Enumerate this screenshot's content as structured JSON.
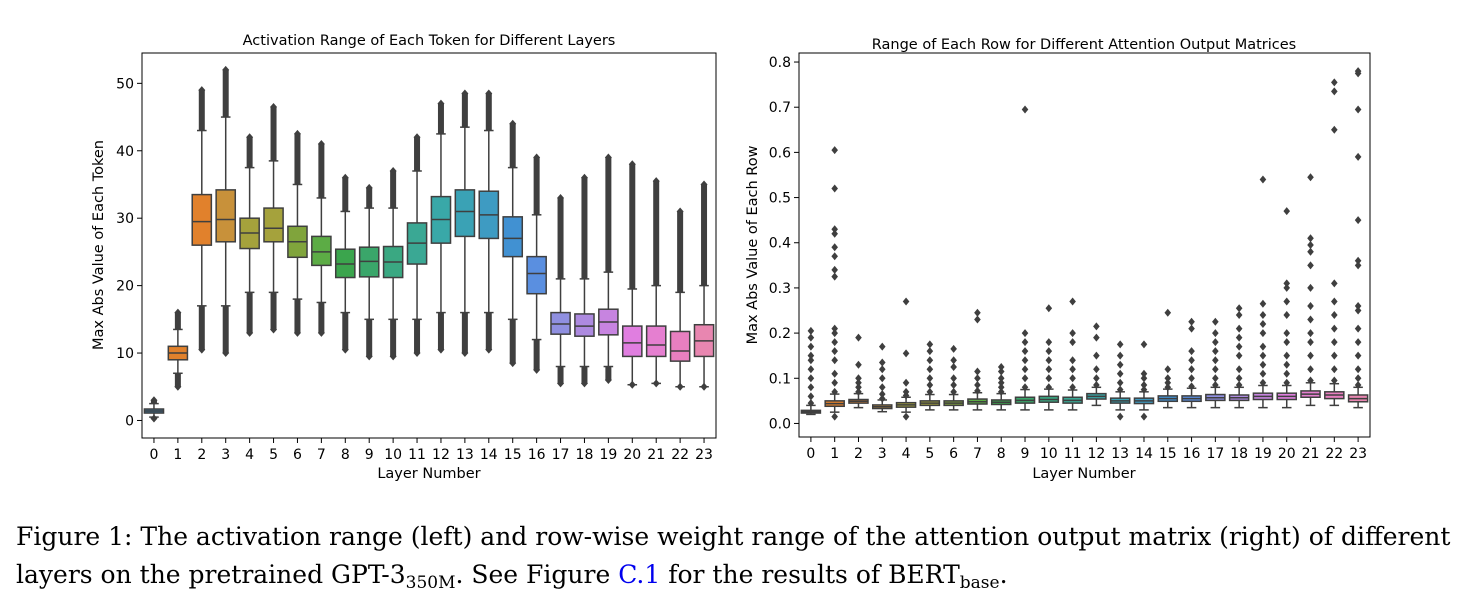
{
  "chart_data": [
    {
      "type": "box",
      "title": "Activation Range of Each Token for Different Layers",
      "xlabel": "Layer Number",
      "ylabel": "Max Abs Value of Each Token",
      "ylim": [
        -2.6,
        54.5
      ],
      "yticks": [
        "0",
        "10",
        "20",
        "30",
        "40",
        "50"
      ],
      "categories": [
        "0",
        "1",
        "2",
        "3",
        "4",
        "5",
        "6",
        "7",
        "8",
        "9",
        "10",
        "11",
        "12",
        "13",
        "14",
        "15",
        "16",
        "17",
        "18",
        "19",
        "20",
        "21",
        "22",
        "23"
      ],
      "colors": [
        "#3274a1",
        "#e1812c",
        "#e1812c",
        "#c8913a",
        "#a5a23c",
        "#a5a23c",
        "#80a43c",
        "#5cac45",
        "#3ba54d",
        "#3aa66a",
        "#3aa882",
        "#3aa894",
        "#39a8a8",
        "#3aa2b5",
        "#3e9bc2",
        "#4191d2",
        "#5a8fe0",
        "#8f8fe0",
        "#ad8ae0",
        "#c784e0",
        "#e07ee0",
        "#e57fd0",
        "#e87fc0",
        "#e886b0"
      ],
      "boxes": [
        {
          "whislo": 0.5,
          "q1": 1.1,
          "med": 1.4,
          "q3": 1.7,
          "whishi": 2.5,
          "flier_lo": 0.3,
          "flier_hi": 3.0
        },
        {
          "whislo": 7.0,
          "q1": 9.0,
          "med": 10.0,
          "q3": 11.0,
          "whishi": 13.5,
          "flier_lo": 5.0,
          "flier_hi": 16.0
        },
        {
          "whislo": 17.0,
          "q1": 26.0,
          "med": 29.5,
          "q3": 33.5,
          "whishi": 43.0,
          "flier_lo": 10.5,
          "flier_hi": 49.0
        },
        {
          "whislo": 17.0,
          "q1": 26.5,
          "med": 29.8,
          "q3": 34.2,
          "whishi": 45.0,
          "flier_lo": 10.0,
          "flier_hi": 52.0
        },
        {
          "whislo": 19.0,
          "q1": 25.5,
          "med": 27.8,
          "q3": 30.0,
          "whishi": 37.5,
          "flier_lo": 13.0,
          "flier_hi": 42.0
        },
        {
          "whislo": 19.0,
          "q1": 26.5,
          "med": 28.5,
          "q3": 31.5,
          "whishi": 38.5,
          "flier_lo": 13.5,
          "flier_hi": 46.5
        },
        {
          "whislo": 18.0,
          "q1": 24.2,
          "med": 26.5,
          "q3": 28.8,
          "whishi": 35.0,
          "flier_lo": 13.0,
          "flier_hi": 42.5
        },
        {
          "whislo": 17.5,
          "q1": 23.0,
          "med": 25.0,
          "q3": 27.3,
          "whishi": 33.0,
          "flier_lo": 13.0,
          "flier_hi": 41.0
        },
        {
          "whislo": 16.0,
          "q1": 21.2,
          "med": 23.2,
          "q3": 25.4,
          "whishi": 31.0,
          "flier_lo": 10.5,
          "flier_hi": 36.0
        },
        {
          "whislo": 15.0,
          "q1": 21.3,
          "med": 23.6,
          "q3": 25.7,
          "whishi": 31.5,
          "flier_lo": 9.5,
          "flier_hi": 34.5
        },
        {
          "whislo": 15.0,
          "q1": 21.2,
          "med": 23.5,
          "q3": 25.8,
          "whishi": 31.5,
          "flier_lo": 9.5,
          "flier_hi": 37.0
        },
        {
          "whislo": 15.0,
          "q1": 23.2,
          "med": 26.3,
          "q3": 29.3,
          "whishi": 37.0,
          "flier_lo": 10.0,
          "flier_hi": 42.0
        },
        {
          "whislo": 16.0,
          "q1": 26.3,
          "med": 29.8,
          "q3": 33.2,
          "whishi": 42.5,
          "flier_lo": 10.5,
          "flier_hi": 47.0
        },
        {
          "whislo": 16.0,
          "q1": 27.3,
          "med": 31.0,
          "q3": 34.2,
          "whishi": 43.5,
          "flier_lo": 10.0,
          "flier_hi": 48.5
        },
        {
          "whislo": 16.0,
          "q1": 27.0,
          "med": 30.5,
          "q3": 34.0,
          "whishi": 43.0,
          "flier_lo": 10.5,
          "flier_hi": 48.5
        },
        {
          "whislo": 15.0,
          "q1": 24.3,
          "med": 27.0,
          "q3": 30.2,
          "whishi": 37.5,
          "flier_lo": 8.5,
          "flier_hi": 44.0
        },
        {
          "whislo": 12.0,
          "q1": 18.8,
          "med": 21.8,
          "q3": 24.3,
          "whishi": 30.5,
          "flier_lo": 7.5,
          "flier_hi": 39.0
        },
        {
          "whislo": 8.0,
          "q1": 12.8,
          "med": 14.3,
          "q3": 16.0,
          "whishi": 21.0,
          "flier_lo": 5.5,
          "flier_hi": 33.0
        },
        {
          "whislo": 8.0,
          "q1": 12.5,
          "med": 14.0,
          "q3": 15.8,
          "whishi": 21.0,
          "flier_lo": 5.5,
          "flier_hi": 36.0
        },
        {
          "whislo": 8.0,
          "q1": 12.7,
          "med": 14.6,
          "q3": 16.5,
          "whishi": 22.0,
          "flier_lo": 6.0,
          "flier_hi": 39.0
        },
        {
          "whislo": 5.3,
          "q1": 9.5,
          "med": 11.5,
          "q3": 14.0,
          "whishi": 19.5,
          "flier_lo": 5.3,
          "flier_hi": 38.0
        },
        {
          "whislo": 5.5,
          "q1": 9.5,
          "med": 11.2,
          "q3": 14.0,
          "whishi": 20.0,
          "flier_lo": 5.5,
          "flier_hi": 35.5
        },
        {
          "whislo": 5.0,
          "q1": 8.8,
          "med": 10.3,
          "q3": 13.2,
          "whishi": 19.0,
          "flier_lo": 5.0,
          "flier_hi": 31.0
        },
        {
          "whislo": 5.0,
          "q1": 9.5,
          "med": 11.8,
          "q3": 14.2,
          "whishi": 20.0,
          "flier_lo": 5.0,
          "flier_hi": 35.0
        }
      ]
    },
    {
      "type": "box",
      "title": "Range of Each Row for Different Attention Output Matrices",
      "xlabel": "Layer Number",
      "ylabel": "Max Abs Value of Each Row",
      "ylim": [
        -0.03,
        0.82
      ],
      "yticks": [
        "0.0",
        "0.1",
        "0.2",
        "0.3",
        "0.4",
        "0.5",
        "0.6",
        "0.7",
        "0.8"
      ],
      "categories": [
        "0",
        "1",
        "2",
        "3",
        "4",
        "5",
        "6",
        "7",
        "8",
        "9",
        "10",
        "11",
        "12",
        "13",
        "14",
        "15",
        "16",
        "17",
        "18",
        "19",
        "20",
        "21",
        "22",
        "23"
      ],
      "colors": [
        "#3274a1",
        "#e1812c",
        "#e1812c",
        "#c8913a",
        "#a5a23c",
        "#a5a23c",
        "#80a43c",
        "#5cac45",
        "#3ba54d",
        "#3aa66a",
        "#3aa882",
        "#3aa894",
        "#39a8a8",
        "#3aa2b5",
        "#3e9bc2",
        "#4191d2",
        "#5a8fe0",
        "#8f8fe0",
        "#ad8ae0",
        "#c784e0",
        "#e07ee0",
        "#e57fd0",
        "#e87fc0",
        "#e886b0"
      ],
      "boxes": [
        {
          "whislo": 0.02,
          "q1": 0.023,
          "med": 0.026,
          "q3": 0.029,
          "whishi": 0.04,
          "fliers": [
            0.045,
            0.06,
            0.08,
            0.1,
            0.12,
            0.14,
            0.15,
            0.17,
            0.19,
            0.205
          ]
        },
        {
          "whislo": 0.025,
          "q1": 0.038,
          "med": 0.044,
          "q3": 0.05,
          "whishi": 0.065,
          "fliers": [
            0.015,
            0.07,
            0.09,
            0.11,
            0.14,
            0.16,
            0.18,
            0.2,
            0.21,
            0.325,
            0.34,
            0.37,
            0.39,
            0.42,
            0.43,
            0.52,
            0.605
          ]
        },
        {
          "whislo": 0.035,
          "q1": 0.045,
          "med": 0.049,
          "q3": 0.053,
          "whishi": 0.066,
          "fliers": [
            0.07,
            0.08,
            0.09,
            0.1,
            0.13,
            0.19
          ]
        },
        {
          "whislo": 0.026,
          "q1": 0.033,
          "med": 0.037,
          "q3": 0.041,
          "whishi": 0.052,
          "fliers": [
            0.055,
            0.065,
            0.08,
            0.1,
            0.12,
            0.135,
            0.17
          ]
        },
        {
          "whislo": 0.025,
          "q1": 0.036,
          "med": 0.041,
          "q3": 0.046,
          "whishi": 0.058,
          "fliers": [
            0.015,
            0.062,
            0.07,
            0.09,
            0.155,
            0.27
          ]
        },
        {
          "whislo": 0.03,
          "q1": 0.04,
          "med": 0.045,
          "q3": 0.05,
          "whishi": 0.064,
          "fliers": [
            0.07,
            0.085,
            0.1,
            0.12,
            0.14,
            0.16,
            0.175
          ]
        },
        {
          "whislo": 0.03,
          "q1": 0.04,
          "med": 0.045,
          "q3": 0.05,
          "whishi": 0.064,
          "fliers": [
            0.07,
            0.085,
            0.1,
            0.125,
            0.14,
            0.165
          ]
        },
        {
          "whislo": 0.03,
          "q1": 0.043,
          "med": 0.048,
          "q3": 0.054,
          "whishi": 0.068,
          "fliers": [
            0.072,
            0.085,
            0.1,
            0.115,
            0.23,
            0.245
          ]
        },
        {
          "whislo": 0.03,
          "q1": 0.042,
          "med": 0.047,
          "q3": 0.052,
          "whishi": 0.066,
          "fliers": [
            0.07,
            0.08,
            0.09,
            0.1,
            0.115,
            0.125
          ]
        },
        {
          "whislo": 0.03,
          "q1": 0.045,
          "med": 0.051,
          "q3": 0.058,
          "whishi": 0.075,
          "fliers": [
            0.08,
            0.1,
            0.12,
            0.14,
            0.16,
            0.18,
            0.2,
            0.695
          ]
        },
        {
          "whislo": 0.03,
          "q1": 0.047,
          "med": 0.053,
          "q3": 0.06,
          "whishi": 0.076,
          "fliers": [
            0.08,
            0.1,
            0.12,
            0.14,
            0.16,
            0.18,
            0.255
          ]
        },
        {
          "whislo": 0.03,
          "q1": 0.045,
          "med": 0.051,
          "q3": 0.058,
          "whishi": 0.074,
          "fliers": [
            0.08,
            0.1,
            0.12,
            0.14,
            0.18,
            0.2,
            0.27
          ]
        },
        {
          "whislo": 0.04,
          "q1": 0.054,
          "med": 0.06,
          "q3": 0.066,
          "whishi": 0.08,
          "fliers": [
            0.085,
            0.1,
            0.12,
            0.15,
            0.19,
            0.215
          ]
        },
        {
          "whislo": 0.03,
          "q1": 0.045,
          "med": 0.05,
          "q3": 0.056,
          "whishi": 0.07,
          "fliers": [
            0.015,
            0.075,
            0.09,
            0.11,
            0.13,
            0.15,
            0.175
          ]
        },
        {
          "whislo": 0.03,
          "q1": 0.044,
          "med": 0.05,
          "q3": 0.056,
          "whishi": 0.07,
          "fliers": [
            0.015,
            0.075,
            0.085,
            0.1,
            0.11,
            0.175
          ]
        },
        {
          "whislo": 0.035,
          "q1": 0.049,
          "med": 0.055,
          "q3": 0.061,
          "whishi": 0.076,
          "fliers": [
            0.08,
            0.09,
            0.1,
            0.12,
            0.245
          ]
        },
        {
          "whislo": 0.035,
          "q1": 0.049,
          "med": 0.055,
          "q3": 0.061,
          "whishi": 0.078,
          "fliers": [
            0.082,
            0.1,
            0.12,
            0.14,
            0.16,
            0.21,
            0.225
          ]
        },
        {
          "whislo": 0.035,
          "q1": 0.051,
          "med": 0.057,
          "q3": 0.064,
          "whishi": 0.08,
          "fliers": [
            0.085,
            0.1,
            0.12,
            0.14,
            0.16,
            0.18,
            0.2,
            0.225
          ]
        },
        {
          "whislo": 0.035,
          "q1": 0.051,
          "med": 0.057,
          "q3": 0.063,
          "whishi": 0.08,
          "fliers": [
            0.085,
            0.1,
            0.12,
            0.15,
            0.17,
            0.19,
            0.21,
            0.24,
            0.255
          ]
        },
        {
          "whislo": 0.035,
          "q1": 0.053,
          "med": 0.06,
          "q3": 0.067,
          "whishi": 0.084,
          "fliers": [
            0.09,
            0.11,
            0.13,
            0.15,
            0.17,
            0.2,
            0.22,
            0.24,
            0.265,
            0.54
          ]
        },
        {
          "whislo": 0.035,
          "q1": 0.053,
          "med": 0.06,
          "q3": 0.067,
          "whishi": 0.084,
          "fliers": [
            0.09,
            0.11,
            0.13,
            0.15,
            0.18,
            0.2,
            0.24,
            0.27,
            0.3,
            0.31,
            0.47
          ]
        },
        {
          "whislo": 0.04,
          "q1": 0.058,
          "med": 0.065,
          "q3": 0.072,
          "whishi": 0.09,
          "fliers": [
            0.095,
            0.12,
            0.15,
            0.18,
            0.2,
            0.23,
            0.26,
            0.3,
            0.35,
            0.38,
            0.395,
            0.41,
            0.545
          ]
        },
        {
          "whislo": 0.04,
          "q1": 0.055,
          "med": 0.063,
          "q3": 0.07,
          "whishi": 0.088,
          "fliers": [
            0.095,
            0.12,
            0.15,
            0.18,
            0.21,
            0.24,
            0.27,
            0.31,
            0.65,
            0.735,
            0.755
          ]
        },
        {
          "whislo": 0.035,
          "q1": 0.048,
          "med": 0.055,
          "q3": 0.063,
          "whishi": 0.08,
          "fliers": [
            0.085,
            0.1,
            0.12,
            0.15,
            0.18,
            0.21,
            0.25,
            0.26,
            0.35,
            0.36,
            0.45,
            0.59,
            0.695,
            0.775,
            0.78
          ]
        }
      ]
    }
  ],
  "caption": {
    "prefix": "Figure 1: The activation range (left) and row-wise weight range of the attention output matrix (right) of different layers on the pretrained GPT-3",
    "model_sub": "350M",
    "middle": ". See Figure ",
    "ref": "C.1",
    "suffix": " for the results of BERT",
    "bert_sub": "base",
    "end": "."
  }
}
